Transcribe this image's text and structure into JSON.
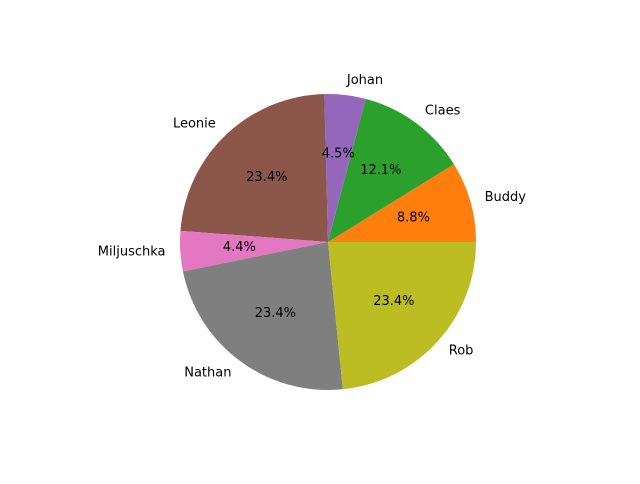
{
  "chart_data": {
    "type": "pie",
    "start_angle_deg": 0,
    "direction": "counterclockwise",
    "slices": [
      {
        "label": "Buddy",
        "value": 8.8,
        "pct_label": "8.8%",
        "color": "#ff7f0e"
      },
      {
        "label": "Claes",
        "value": 12.1,
        "pct_label": "12.1%",
        "color": "#2ca02c"
      },
      {
        "label": "Johan",
        "value": 4.5,
        "pct_label": "4.5%",
        "color": "#9467bd"
      },
      {
        "label": "Leonie",
        "value": 23.4,
        "pct_label": "23.4%",
        "color": "#8c564b"
      },
      {
        "label": "Miljuschka",
        "value": 4.4,
        "pct_label": "4.4%",
        "color": "#e377c2"
      },
      {
        "label": "Nathan",
        "value": 23.4,
        "pct_label": "23.4%",
        "color": "#7f7f7f"
      },
      {
        "label": "Rob",
        "value": 23.4,
        "pct_label": "23.4%",
        "color": "#bcbd22"
      }
    ]
  }
}
